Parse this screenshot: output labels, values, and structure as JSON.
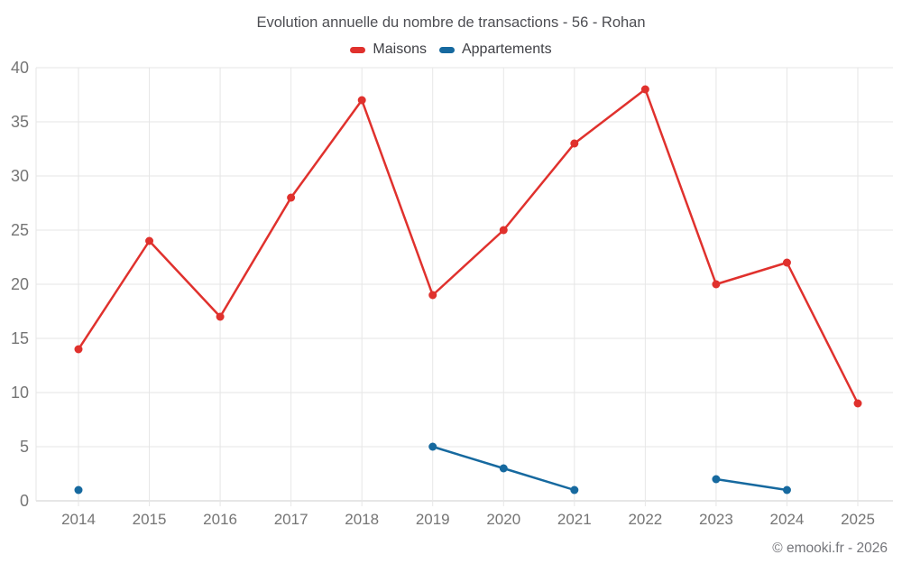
{
  "title": "Evolution annuelle du nombre de transactions - 56 - Rohan",
  "footer": "© emooki.fr - 2026",
  "legend": {
    "items": [
      {
        "label": "Maisons",
        "color": "#e0312d"
      },
      {
        "label": "Appartements",
        "color": "#16699f"
      }
    ]
  },
  "colors": {
    "maisons": "#e0312d",
    "appartements": "#16699f",
    "grid": "#e6e6e6",
    "axis_line": "#cccccc",
    "axis_text": "#757575"
  },
  "chart_data": {
    "type": "line",
    "title": "Evolution annuelle du nombre de transactions - 56 - Rohan",
    "x": [
      2014,
      2015,
      2016,
      2017,
      2018,
      2019,
      2020,
      2021,
      2022,
      2023,
      2024,
      2025
    ],
    "series": [
      {
        "name": "Maisons",
        "color": "#e0312d",
        "values": [
          14,
          24,
          17,
          28,
          37,
          19,
          25,
          33,
          38,
          20,
          22,
          9
        ]
      },
      {
        "name": "Appartements",
        "color": "#16699f",
        "values": [
          1,
          null,
          null,
          null,
          null,
          5,
          3,
          1,
          null,
          2,
          1,
          null
        ]
      }
    ],
    "xlabel": "",
    "ylabel": "",
    "ylim": [
      0,
      40
    ],
    "yticks": [
      0,
      5,
      10,
      15,
      20,
      25,
      30,
      35,
      40
    ],
    "grid": true,
    "legend_position": "top",
    "marker": "circle"
  }
}
